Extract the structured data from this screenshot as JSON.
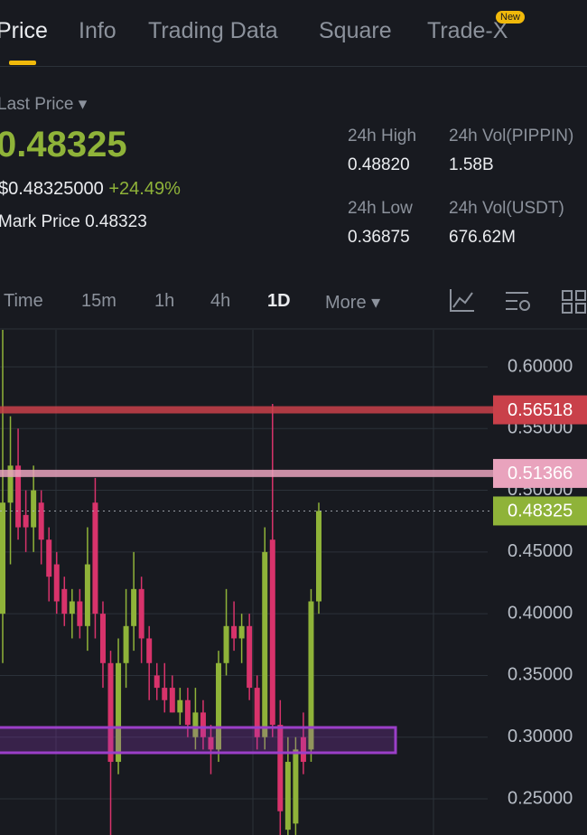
{
  "tabs": [
    "Price",
    "Info",
    "Trading Data",
    "Square",
    "Trade-X"
  ],
  "new_badge": "New",
  "last_price_label": "Last Price",
  "last_price": "0.48325",
  "usd_price": "$0.48325000",
  "change": "+24.49%",
  "mark_price_label": "Mark Price",
  "mark_price": "0.48323",
  "stats": [
    {
      "label": "24h High",
      "value": "0.48820"
    },
    {
      "label": "24h Vol(PIPPIN)",
      "value": "1.58B"
    },
    {
      "label": "24h Low",
      "value": "0.36875"
    },
    {
      "label": "24h Vol(USDT)",
      "value": "676.62M"
    }
  ],
  "intervals": [
    "Time",
    "15m",
    "1h",
    "4h",
    "1D",
    "More"
  ],
  "chart_data": {
    "type": "candlestick",
    "ylim": [
      0.22,
      0.63
    ],
    "yticks": [
      {
        "value": 0.25,
        "label": "0.25000"
      },
      {
        "value": 0.3,
        "label": "0.30000"
      },
      {
        "value": 0.35,
        "label": "0.35000"
      },
      {
        "value": 0.4,
        "label": "0.40000"
      },
      {
        "value": 0.45,
        "label": "0.45000"
      },
      {
        "value": 0.5,
        "label": "0.50000"
      },
      {
        "value": 0.55,
        "label": "0.55000"
      },
      {
        "value": 0.6,
        "label": "0.60000"
      }
    ],
    "grid": true,
    "up_color": "#8fb339",
    "down_color": "#d8336b",
    "open": [
      0.4,
      0.49,
      0.52,
      0.48,
      0.47,
      0.49,
      0.46,
      0.44,
      0.42,
      0.4,
      0.41,
      0.39,
      0.49,
      0.4,
      0.36,
      0.28,
      0.36,
      0.39,
      0.42,
      0.38,
      0.35,
      0.34,
      0.34,
      0.32,
      0.33,
      0.3,
      0.32,
      0.3,
      0.29,
      0.36,
      0.39,
      0.38,
      0.39,
      0.34,
      0.3,
      0.46,
      0.31,
      0.225,
      0.23,
      0.3,
      0.29,
      0.41
    ],
    "high": [
      0.63,
      0.56,
      0.55,
      0.5,
      0.52,
      0.5,
      0.47,
      0.45,
      0.43,
      0.42,
      0.42,
      0.47,
      0.51,
      0.41,
      0.37,
      0.38,
      0.42,
      0.45,
      0.43,
      0.39,
      0.36,
      0.36,
      0.35,
      0.34,
      0.34,
      0.34,
      0.33,
      0.31,
      0.37,
      0.42,
      0.41,
      0.4,
      0.4,
      0.35,
      0.47,
      0.57,
      0.33,
      0.3,
      0.3,
      0.32,
      0.42,
      0.49
    ],
    "low": [
      0.36,
      0.44,
      0.46,
      0.45,
      0.45,
      0.44,
      0.41,
      0.4,
      0.39,
      0.38,
      0.38,
      0.37,
      0.38,
      0.34,
      0.22,
      0.27,
      0.34,
      0.37,
      0.36,
      0.33,
      0.33,
      0.32,
      0.32,
      0.31,
      0.3,
      0.29,
      0.29,
      0.27,
      0.28,
      0.35,
      0.37,
      0.36,
      0.33,
      0.29,
      0.29,
      0.3,
      0.22,
      0.22,
      0.22,
      0.27,
      0.28,
      0.4
    ],
    "close": [
      0.49,
      0.52,
      0.47,
      0.47,
      0.5,
      0.46,
      0.43,
      0.41,
      0.4,
      0.41,
      0.39,
      0.44,
      0.4,
      0.36,
      0.28,
      0.36,
      0.39,
      0.42,
      0.38,
      0.36,
      0.34,
      0.33,
      0.32,
      0.33,
      0.31,
      0.32,
      0.3,
      0.29,
      0.36,
      0.39,
      0.38,
      0.39,
      0.34,
      0.3,
      0.45,
      0.31,
      0.24,
      0.28,
      0.29,
      0.28,
      0.41,
      0.48325
    ],
    "price_lines": [
      {
        "value": 0.56518,
        "color": "#c9404a"
      },
      {
        "value": 0.51366,
        "color": "#e9a3bd"
      },
      {
        "value": 0.48325,
        "color": "#8fb339"
      }
    ]
  }
}
